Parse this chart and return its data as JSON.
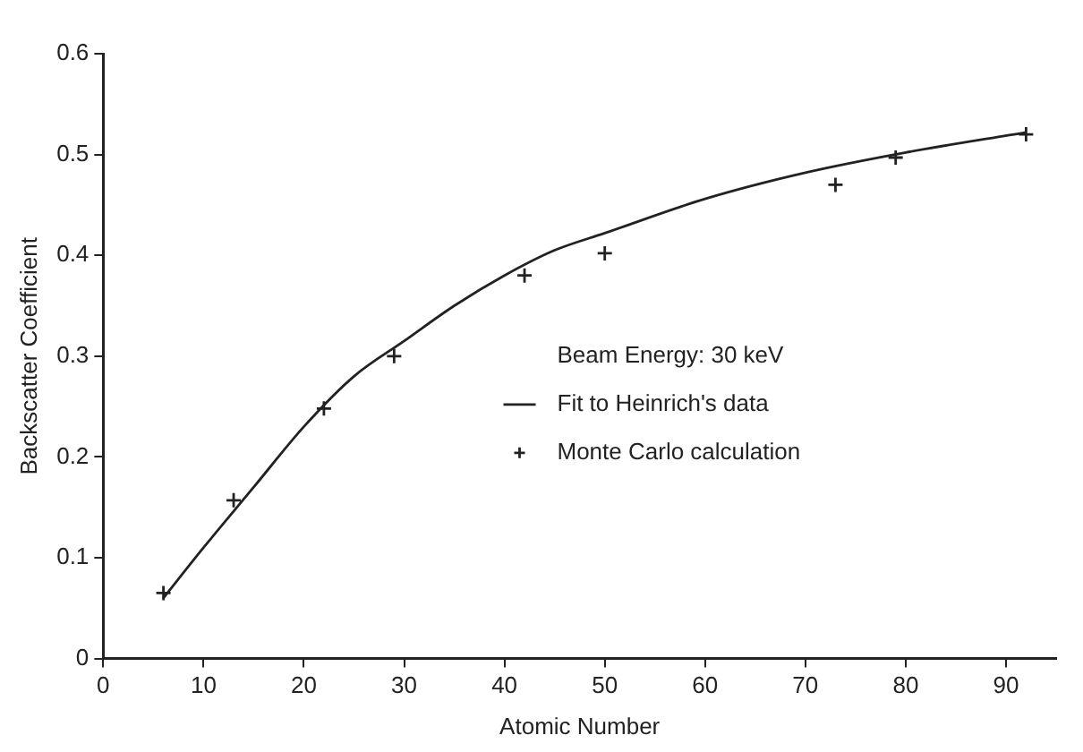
{
  "chart_data": {
    "type": "line",
    "xlabel": "Atomic Number",
    "ylabel": "Backscatter Coefficient",
    "legend_title": "Beam Energy: 30 keV",
    "legend": "right",
    "grid": false,
    "xlim": [
      0,
      95
    ],
    "xticks": [
      0,
      10,
      20,
      30,
      40,
      50,
      60,
      70,
      80,
      90
    ],
    "ylim": [
      0,
      0.6
    ],
    "yticks": [
      0,
      0.1,
      0.2,
      0.3,
      0.4,
      0.5,
      0.6
    ],
    "series": [
      {
        "name": "Fit to Heinrich's data",
        "color": "#222222",
        "marker": "none",
        "line_style": "solid",
        "x": [
          6,
          10,
          15,
          20,
          25,
          30,
          35,
          40,
          45,
          50,
          60,
          70,
          80,
          92
        ],
        "values": [
          0.06,
          0.11,
          0.17,
          0.23,
          0.28,
          0.315,
          0.35,
          0.38,
          0.405,
          0.422,
          0.456,
          0.482,
          0.502,
          0.522
        ]
      },
      {
        "name": "Monte Carlo calculation",
        "type": "scatter",
        "color": "#222222",
        "marker": "cross",
        "x": [
          6,
          13,
          22,
          29,
          42,
          50,
          73,
          79,
          92
        ],
        "values": [
          0.065,
          0.157,
          0.248,
          0.3,
          0.38,
          0.402,
          0.47,
          0.497,
          0.52
        ]
      }
    ]
  }
}
